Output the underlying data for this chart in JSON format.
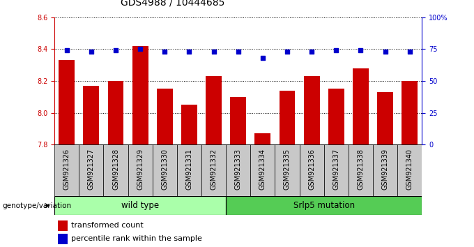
{
  "title": "GDS4988 / 10444685",
  "samples": [
    "GSM921326",
    "GSM921327",
    "GSM921328",
    "GSM921329",
    "GSM921330",
    "GSM921331",
    "GSM921332",
    "GSM921333",
    "GSM921334",
    "GSM921335",
    "GSM921336",
    "GSM921337",
    "GSM921338",
    "GSM921339",
    "GSM921340"
  ],
  "transformed_counts": [
    8.33,
    8.17,
    8.2,
    8.42,
    8.15,
    8.05,
    8.23,
    8.1,
    7.87,
    8.14,
    8.23,
    8.15,
    8.28,
    8.13,
    8.2
  ],
  "percentile_ranks": [
    74,
    73,
    74,
    75,
    73,
    73,
    73,
    73,
    68,
    73,
    73,
    74,
    74,
    73,
    73
  ],
  "bar_color": "#cc0000",
  "dot_color": "#0000cc",
  "ylim_left": [
    7.8,
    8.6
  ],
  "ylim_right": [
    0,
    100
  ],
  "yticks_left": [
    7.8,
    8.0,
    8.2,
    8.4,
    8.6
  ],
  "yticks_right": [
    0,
    25,
    50,
    75,
    100
  ],
  "group1_label": "wild type",
  "group2_label": "Srlp5 mutation",
  "group1_count": 7,
  "group2_count": 8,
  "group1_color": "#aaffaa",
  "group2_color": "#55cc55",
  "genotype_label": "genotype/variation",
  "legend_bar_label": "transformed count",
  "legend_dot_label": "percentile rank within the sample",
  "axis_color_left": "#cc0000",
  "axis_color_right": "#0000cc",
  "title_fontsize": 10,
  "tick_fontsize": 7,
  "bar_width": 0.65,
  "gray_bg": "#c8c8c8"
}
